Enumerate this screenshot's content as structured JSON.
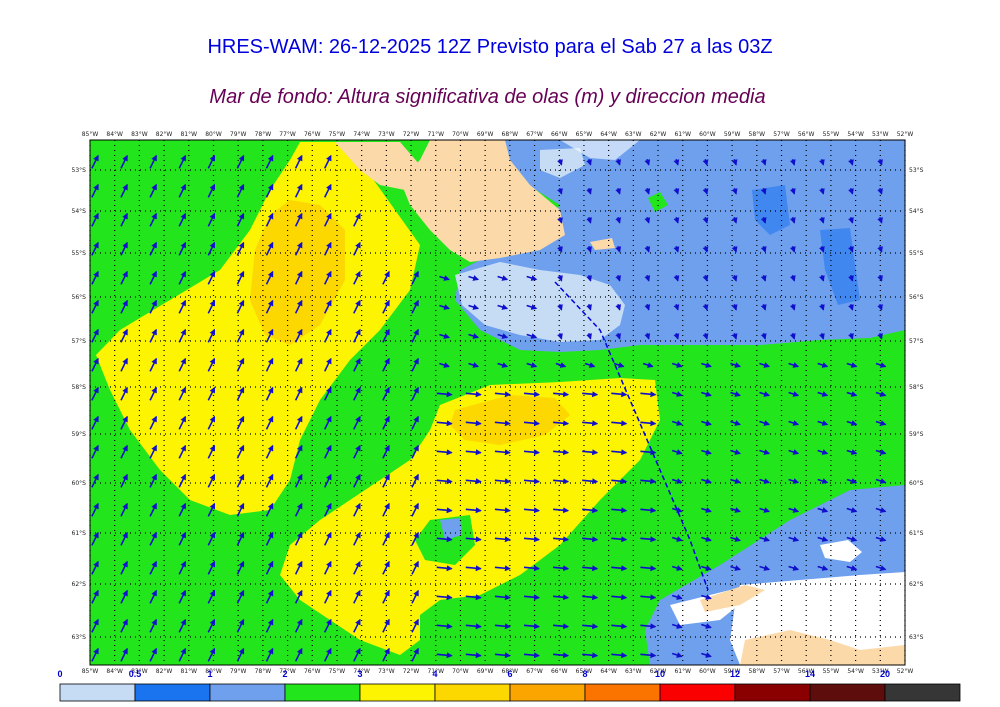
{
  "title": "HRES-WAM: 26-12-2025 12Z Previsto para el Sab 27 a las 03Z",
  "subtitle": "Mar de fondo: Altura significativa de olas (m) y direccion media",
  "map": {
    "lon_labels": [
      "85°W",
      "84°W",
      "83°W",
      "82°W",
      "81°W",
      "80°W",
      "79°W",
      "78°W",
      "77°W",
      "76°W",
      "75°W",
      "74°W",
      "73°W",
      "72°W",
      "71°W",
      "70°W",
      "69°W",
      "68°W",
      "67°W",
      "66°W",
      "65°W",
      "64°W",
      "63°W",
      "62°W",
      "61°W",
      "60°W",
      "59°W",
      "58°W",
      "57°W",
      "56°W",
      "55°W",
      "54°W",
      "53°W",
      "52°W"
    ],
    "lat_labels": [
      "53°S",
      "54°S",
      "55°S",
      "56°S",
      "57°S",
      "58°S",
      "59°S",
      "60°S",
      "61°S",
      "62°S",
      "63°S"
    ],
    "colors": {
      "land": "#fcd9a8",
      "ice": "#ffffff",
      "track": "#0000dd",
      "arrow": "#1010cc"
    }
  },
  "colorbar": {
    "labels": [
      "0",
      "0.5",
      "1",
      "2",
      "3",
      "4",
      "6",
      "8",
      "10",
      "12",
      "14",
      "20"
    ],
    "colors": [
      "#c6dcf5",
      "#1a74f0",
      "#6fa0ee",
      "#22e51b",
      "#fcf400",
      "#fcd700",
      "#fba500",
      "#fb7400",
      "#fb0000",
      "#8a0000",
      "#5e0d0d",
      "#363636"
    ],
    "unit": "m"
  }
}
